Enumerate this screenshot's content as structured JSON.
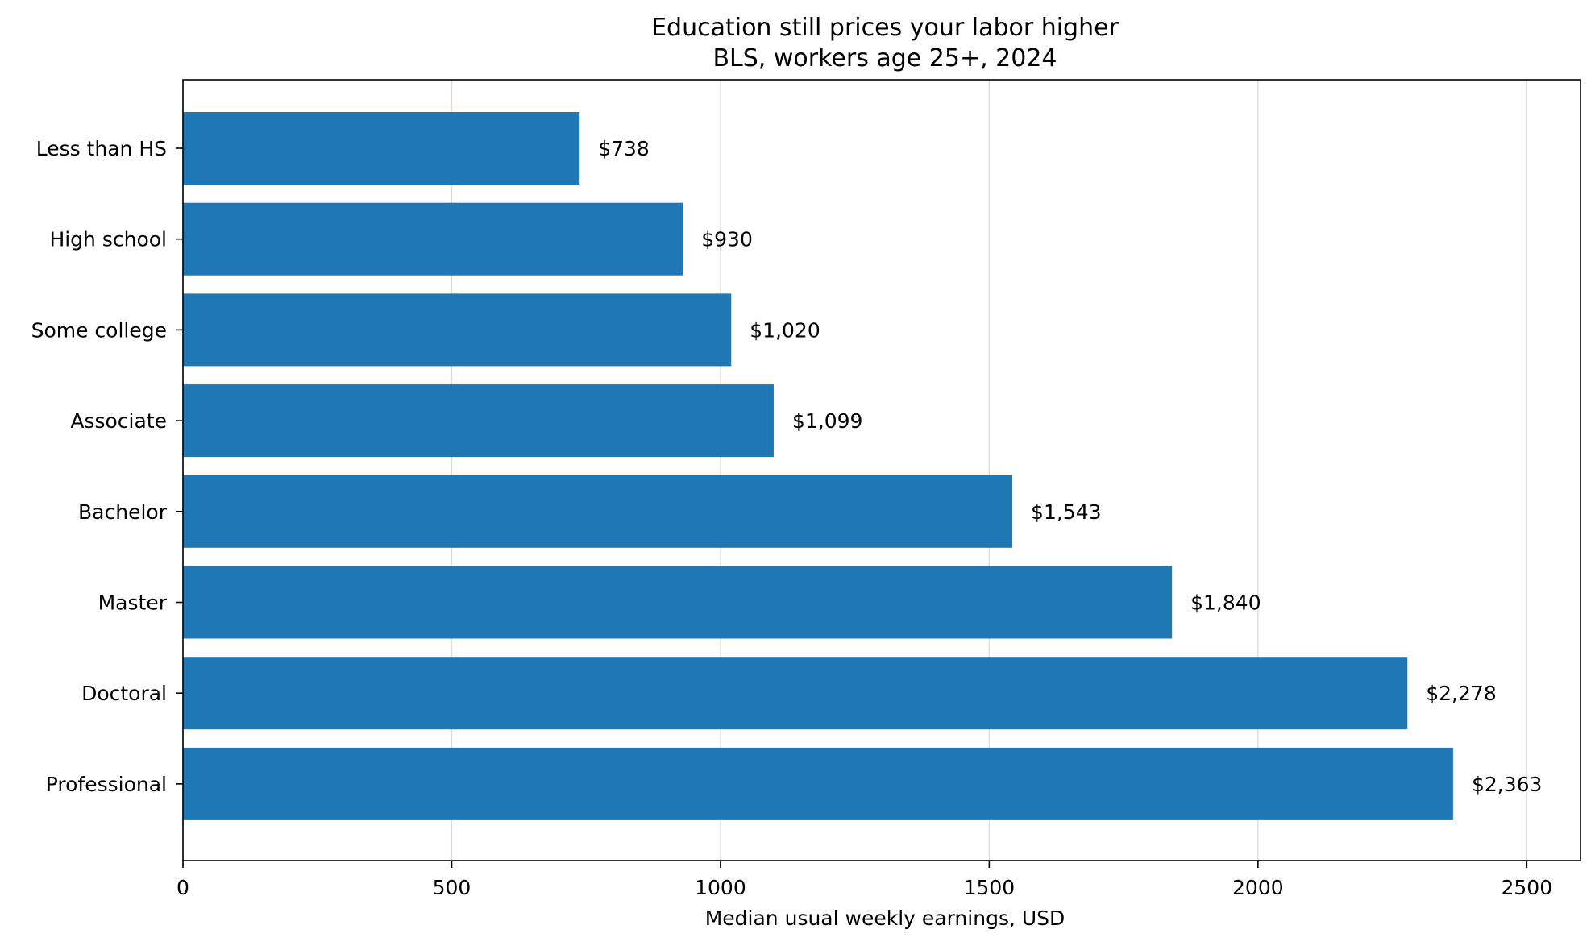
{
  "chart_data": {
    "type": "bar",
    "orientation": "horizontal",
    "title": "Education still prices your labor higher",
    "subtitle": "BLS, workers age 25+, 2024",
    "xlabel": "Median usual weekly earnings, USD",
    "ylabel": "",
    "categories": [
      "Less than HS",
      "High school",
      "Some college",
      "Associate",
      "Bachelor",
      "Master",
      "Doctoral",
      "Professional"
    ],
    "values": [
      738,
      930,
      1020,
      1099,
      1543,
      1840,
      2278,
      2363
    ],
    "value_labels": [
      "$738",
      "$930",
      "$1,020",
      "$1,099",
      "$1,543",
      "$1,840",
      "$2,278",
      "$2,363"
    ],
    "xlim": [
      0,
      2600
    ],
    "xticks": [
      0,
      500,
      1000,
      1500,
      2000,
      2500
    ],
    "xtick_labels": [
      "0",
      "500",
      "1000",
      "1500",
      "2000",
      "2500"
    ],
    "grid": "x",
    "colors": {
      "bar": "#1f77b4",
      "grid": "#dddddd",
      "axis": "#000000"
    }
  }
}
